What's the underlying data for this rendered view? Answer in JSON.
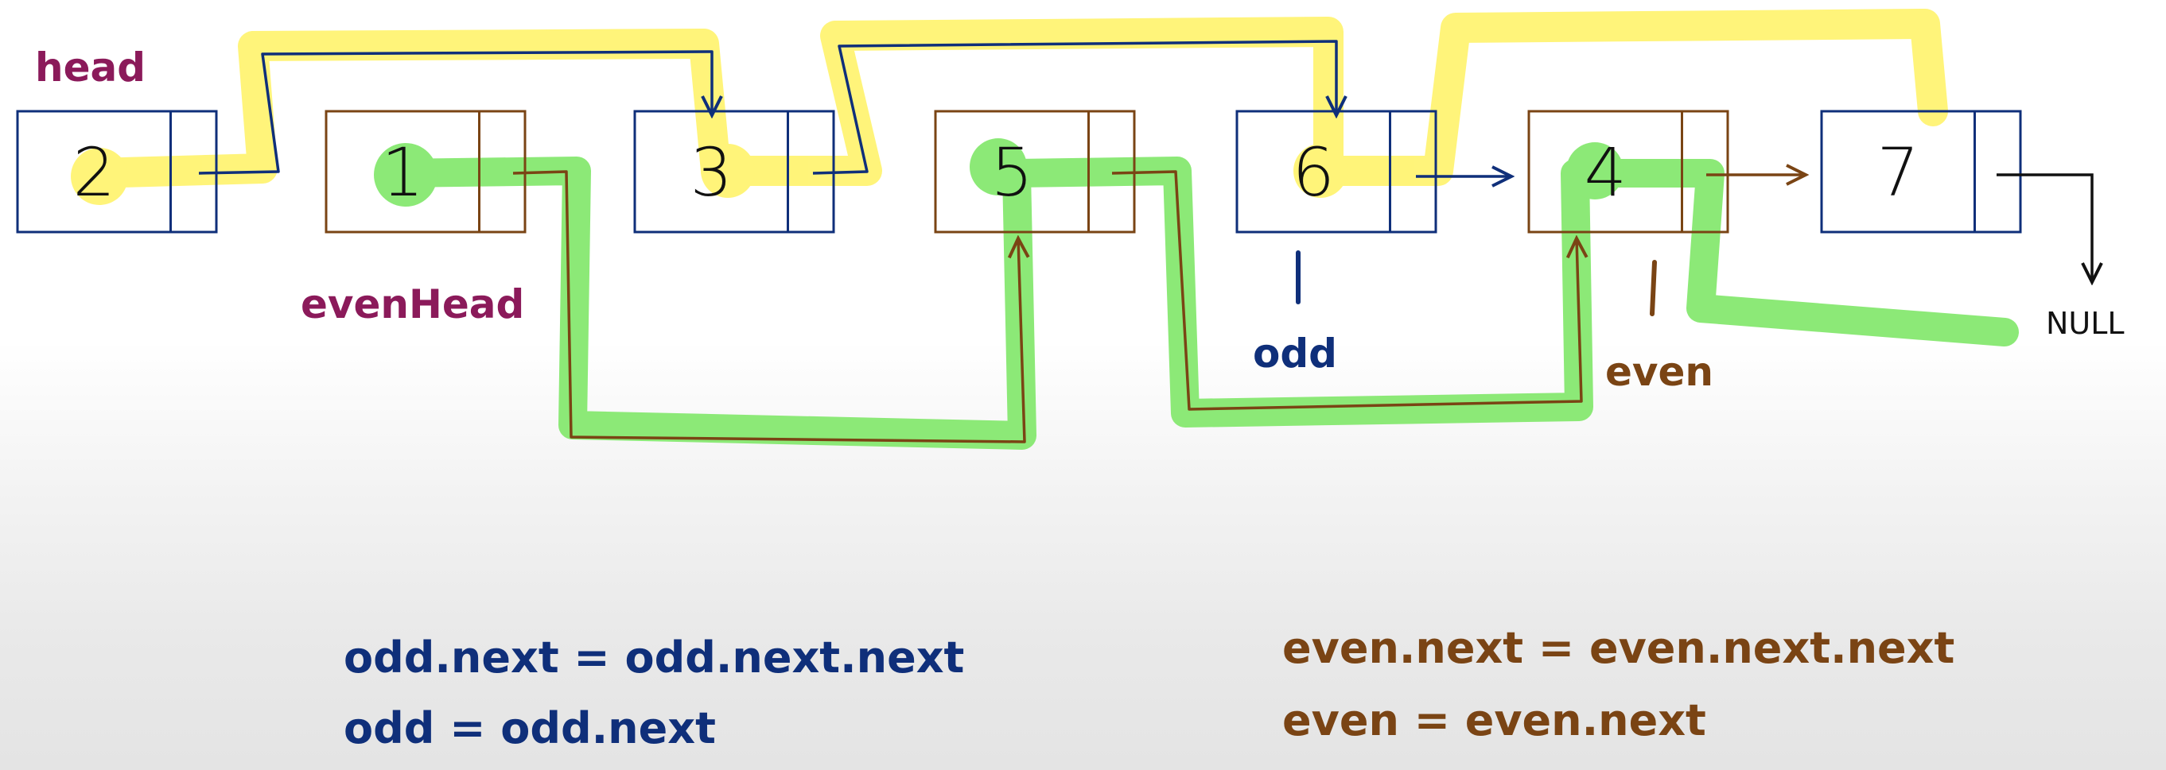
{
  "colors": {
    "odd": "#0f2f7a",
    "even": "#7a4414",
    "label": "#8b1a5a",
    "yellow_highlight": "#fff36b",
    "green_highlight": "#86e870",
    "ink": "#111111"
  },
  "nodes": [
    {
      "value": "2",
      "parity": "odd"
    },
    {
      "value": "1",
      "parity": "even"
    },
    {
      "value": "3",
      "parity": "odd"
    },
    {
      "value": "5",
      "parity": "even"
    },
    {
      "value": "6",
      "parity": "odd"
    },
    {
      "value": "4",
      "parity": "even"
    },
    {
      "value": "7",
      "parity": "odd"
    }
  ],
  "labels": {
    "head": "head",
    "even_head": "evenHead",
    "odd": "odd",
    "even": "even",
    "null": "NULL"
  },
  "code": {
    "odd_line1": "odd.next = odd.next.next",
    "odd_line2": "odd =  odd.next",
    "even_line1": "even.next = even.next.next",
    "even_line2": "even = even.next"
  }
}
